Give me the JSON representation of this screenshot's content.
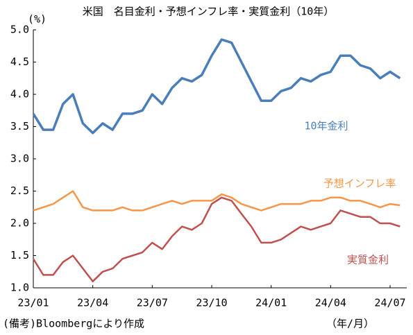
{
  "chart_data": {
    "type": "line",
    "title": "米国　名目金利・予想インフレ率・実質金利（10年）",
    "y_unit": "(%)",
    "x_label": "（年/月）",
    "source": "(備考)Bloombergにより作成",
    "categories": [
      "23/01",
      null,
      null,
      null,
      null,
      null,
      "23/04",
      null,
      null,
      null,
      null,
      null,
      "23/07",
      null,
      null,
      null,
      null,
      null,
      "23/10",
      null,
      null,
      null,
      null,
      null,
      "24/01",
      null,
      null,
      null,
      null,
      null,
      "24/04",
      null,
      null,
      null,
      null,
      null,
      "24/07",
      null
    ],
    "series": [
      {
        "name": "10年金利",
        "color": "#4a7ebb",
        "values": [
          3.7,
          3.45,
          3.45,
          3.85,
          4.0,
          3.55,
          3.4,
          3.55,
          3.45,
          3.7,
          3.7,
          3.75,
          4.0,
          3.85,
          4.1,
          4.25,
          4.2,
          4.3,
          4.6,
          4.85,
          4.8,
          4.5,
          4.2,
          3.9,
          3.9,
          4.05,
          4.1,
          4.25,
          4.2,
          4.3,
          4.35,
          4.6,
          4.6,
          4.45,
          4.4,
          4.25,
          4.35,
          4.25
        ]
      },
      {
        "name": "予想インフレ率",
        "color": "#f79646",
        "values": [
          2.2,
          2.25,
          2.3,
          2.4,
          2.5,
          2.25,
          2.2,
          2.2,
          2.2,
          2.25,
          2.2,
          2.2,
          2.25,
          2.3,
          2.35,
          2.3,
          2.35,
          2.35,
          2.35,
          2.45,
          2.4,
          2.3,
          2.25,
          2.2,
          2.25,
          2.3,
          2.3,
          2.3,
          2.35,
          2.35,
          2.4,
          2.4,
          2.35,
          2.35,
          2.3,
          2.25,
          2.3,
          2.28
        ]
      },
      {
        "name": "実質金利",
        "color": "#c0504d",
        "values": [
          1.45,
          1.2,
          1.2,
          1.4,
          1.5,
          1.3,
          1.1,
          1.25,
          1.3,
          1.45,
          1.5,
          1.55,
          1.7,
          1.6,
          1.8,
          1.95,
          1.9,
          2.0,
          2.3,
          2.4,
          2.35,
          2.15,
          1.95,
          1.7,
          1.7,
          1.75,
          1.85,
          1.95,
          1.9,
          1.95,
          2.0,
          2.2,
          2.15,
          2.1,
          2.1,
          2.0,
          2.0,
          1.95
        ]
      }
    ],
    "ylim": [
      1,
      5
    ],
    "yticks": [
      {
        "value": 1,
        "label": "1.0"
      },
      1.5,
      {
        "value": 2,
        "label": "2.0"
      },
      2.5,
      {
        "value": 3,
        "label": "3.0"
      },
      3.5,
      {
        "value": 4,
        "label": "4.0"
      },
      4.5,
      {
        "value": 5,
        "label": "5.0"
      }
    ],
    "grid": false
  }
}
